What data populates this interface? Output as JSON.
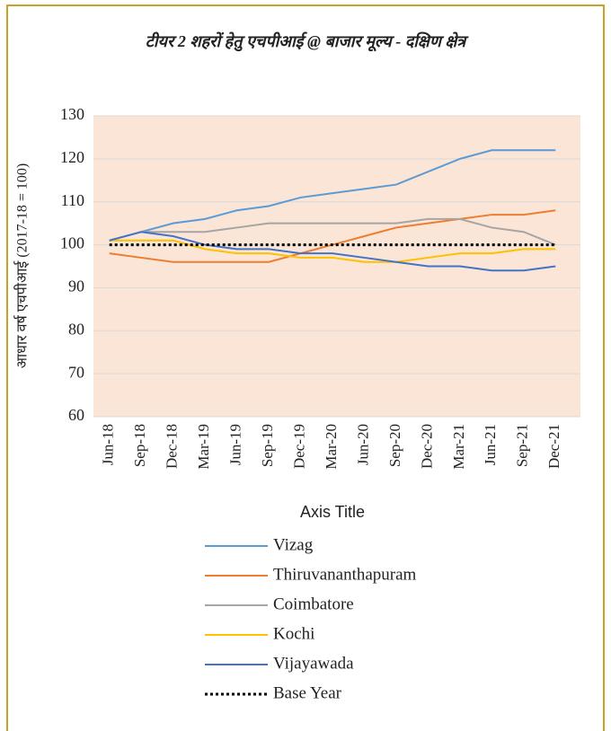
{
  "chart_data": {
    "type": "line",
    "title": "टीयर 2 शहरों हेतु एचपीआई @ बाजार मूल्य - दक्षिण क्षेत्र",
    "x_label": "Axis Title",
    "y_label": "आधार वर्ष एचपीआई (2017-18 = 100)",
    "categories": [
      "Jun-18",
      "Sep-18",
      "Dec-18",
      "Mar-19",
      "Jun-19",
      "Sep-19",
      "Dec-19",
      "Mar-20",
      "Jun-20",
      "Sep-20",
      "Dec-20",
      "Mar-21",
      "Jun-21",
      "Sep-21",
      "Dec-21"
    ],
    "series": [
      {
        "name": "Vizag",
        "color": "#5B9BD5",
        "values": [
          101,
          103,
          105,
          106,
          108,
          109,
          111,
          112,
          113,
          114,
          117,
          120,
          122,
          122,
          122
        ]
      },
      {
        "name": "Thiruvananthapuram",
        "color": "#ED7D31",
        "values": [
          98,
          97,
          96,
          96,
          96,
          96,
          98,
          100,
          102,
          104,
          105,
          106,
          107,
          107,
          108
        ]
      },
      {
        "name": "Coimbatore",
        "color": "#A5A5A5",
        "values": [
          101,
          103,
          103,
          103,
          104,
          105,
          105,
          105,
          105,
          105,
          106,
          106,
          104,
          103,
          100
        ]
      },
      {
        "name": "Kochi",
        "color": "#FFC000",
        "values": [
          101,
          101,
          101,
          99,
          98,
          98,
          97,
          97,
          96,
          96,
          97,
          98,
          98,
          99,
          99
        ]
      },
      {
        "name": "Vijayawada",
        "color": "#4472C4",
        "values": [
          101,
          103,
          102,
          100,
          99,
          99,
          98,
          98,
          97,
          96,
          95,
          95,
          94,
          94,
          95
        ]
      },
      {
        "name": "Base Year",
        "color": "#000000",
        "dash": "dotted",
        "values": [
          100,
          100,
          100,
          100,
          100,
          100,
          100,
          100,
          100,
          100,
          100,
          100,
          100,
          100,
          100
        ]
      }
    ],
    "ylim": [
      60,
      130
    ],
    "yticks": [
      60,
      70,
      80,
      90,
      100,
      110,
      120,
      130
    ],
    "grid": true,
    "plot_background": "#FBE5D6",
    "legend": "bottom"
  }
}
